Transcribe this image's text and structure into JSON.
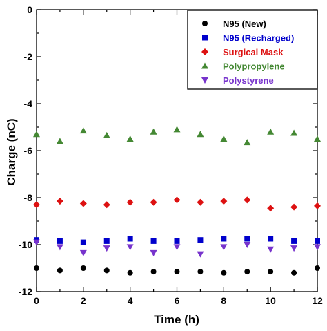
{
  "chart_data": {
    "type": "scatter",
    "xlabel": "Time (h)",
    "ylabel": "Charge (nC)",
    "xlim": [
      0,
      12
    ],
    "ylim": [
      -12,
      0
    ],
    "xticks": [
      "0",
      "2",
      "4",
      "6",
      "8",
      "10",
      "12"
    ],
    "yticks": [
      "0",
      "-2",
      "-4",
      "-6",
      "-8",
      "-10",
      "-12"
    ],
    "grid": false,
    "legend_position": "top-right",
    "series": [
      {
        "name": "N95 (New)",
        "color": "#000000",
        "marker": "circle",
        "x": [
          0,
          1,
          2,
          3,
          4,
          5,
          6,
          7,
          8,
          9,
          10,
          11,
          12
        ],
        "y": [
          -11.0,
          -11.1,
          -11.0,
          -11.1,
          -11.2,
          -11.15,
          -11.15,
          -11.15,
          -11.2,
          -11.15,
          -11.15,
          -11.2,
          -11.0
        ]
      },
      {
        "name": "N95 (Recharged)",
        "color": "#0000cc",
        "marker": "square",
        "x": [
          0,
          1,
          2,
          3,
          4,
          5,
          6,
          7,
          8,
          9,
          10,
          11,
          12
        ],
        "y": [
          -9.8,
          -9.85,
          -9.9,
          -9.85,
          -9.75,
          -9.85,
          -9.85,
          -9.8,
          -9.75,
          -9.75,
          -9.75,
          -9.85,
          -9.85
        ]
      },
      {
        "name": "Surgical Mask",
        "color": "#dd1111",
        "marker": "diamond",
        "x": [
          0,
          1,
          2,
          3,
          4,
          5,
          6,
          7,
          8,
          9,
          10,
          11,
          12
        ],
        "y": [
          -8.3,
          -8.15,
          -8.25,
          -8.3,
          -8.2,
          -8.2,
          -8.1,
          -8.2,
          -8.15,
          -8.1,
          -8.45,
          -8.4,
          -8.35
        ]
      },
      {
        "name": "Polypropylene",
        "color": "#448833",
        "marker": "triangle-up",
        "x": [
          0,
          1,
          2,
          3,
          4,
          5,
          6,
          7,
          8,
          9,
          10,
          11,
          12
        ],
        "y": [
          -5.3,
          -5.6,
          -5.15,
          -5.35,
          -5.5,
          -5.2,
          -5.1,
          -5.3,
          -5.5,
          -5.65,
          -5.2,
          -5.25,
          -5.5
        ]
      },
      {
        "name": "Polystyrene",
        "color": "#7733cc",
        "marker": "triangle-down",
        "x": [
          0,
          1,
          2,
          3,
          4,
          5,
          6,
          7,
          8,
          9,
          10,
          11,
          12
        ],
        "y": [
          -9.9,
          -10.1,
          -10.35,
          -10.15,
          -10.1,
          -10.35,
          -10.1,
          -10.4,
          -10.1,
          -10.0,
          -10.2,
          -10.15,
          -10.1
        ]
      }
    ]
  }
}
